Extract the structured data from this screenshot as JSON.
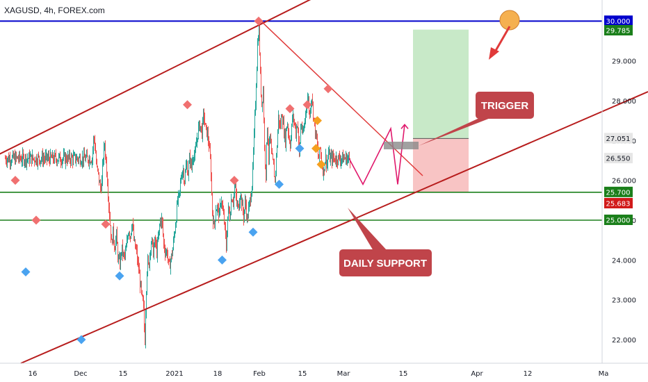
{
  "header": {
    "symbol_label": "XAGUSD, 4h, FOREX.com"
  },
  "colors": {
    "channel": "#b71c1c",
    "resistance": "#0000cc",
    "support_green": "#1b7f1b",
    "candle_up": "#26a69a",
    "candle_down": "#ef5350",
    "marker_red": "#f07070",
    "marker_blue": "#4aa3f0",
    "marker_orange": "#f5a020",
    "path_magenta": "#e0186c",
    "target_zone": "#c8e9c8",
    "stop_zone": "#f8c4c4",
    "callout_bg": "#c0444a",
    "sun_marker": "#f5b050"
  },
  "annotations": {
    "trigger_label": "TRIGGER",
    "daily_support_label": "DAILY SUPPORT"
  },
  "chart_data": {
    "type": "candlestick",
    "title": "XAGUSD, 4h, FOREX.com",
    "y_axis": {
      "ticks": [
        "22.000",
        "23.000",
        "24.000",
        "25.000",
        "26.000",
        "27.000",
        "28.000",
        "29.000"
      ],
      "tick_values": [
        22,
        23,
        24,
        25,
        26,
        27,
        28,
        29
      ]
    },
    "x_axis": {
      "tick_labels": [
        "16",
        "Dec",
        "15",
        "2021",
        "18",
        "Feb",
        "15",
        "Mar",
        "15",
        "Apr",
        "12",
        "Ma"
      ]
    },
    "price_tags": [
      {
        "value": 30.0,
        "label": "30.000",
        "color": "#0000cc"
      },
      {
        "value": 29.785,
        "label": "29.785",
        "color": "#1b7f1b"
      },
      {
        "value": 27.051,
        "label": "27.051",
        "color": "#e6e6e6"
      },
      {
        "value": 26.55,
        "label": "26.550",
        "color": "#e6e6e6"
      },
      {
        "value": 25.7,
        "label": "25.700",
        "color": "#1b7f1b"
      },
      {
        "value": 25.683,
        "label": "25.683",
        "color": "#d11a1a"
      },
      {
        "value": 25.0,
        "label": "25.000",
        "color": "#1b7f1b"
      }
    ],
    "horizontal_levels": [
      {
        "value": 30.0,
        "role": "resistance"
      },
      {
        "value": 25.7,
        "role": "support"
      },
      {
        "value": 25.0,
        "role": "support"
      }
    ],
    "position": {
      "entry": 27.051,
      "target": 29.785,
      "stop": 25.7
    },
    "close_path": [
      [
        25.0,
        26.55
      ],
      [
        25.4,
        27.02
      ],
      [
        25.6,
        27.05
      ],
      [
        26.0,
        26.7
      ],
      [
        26.3,
        26.3
      ],
      [
        26.7,
        26.2
      ],
      [
        27.0,
        26.0
      ],
      [
        27.4,
        25.8
      ],
      [
        27.8,
        25.95
      ],
      [
        28.2,
        26.6
      ],
      [
        28.6,
        26.9
      ],
      [
        29.0,
        26.5
      ],
      [
        29.4,
        26.0
      ],
      [
        29.8,
        25.4
      ],
      [
        30.2,
        24.9
      ],
      [
        30.6,
        24.4
      ],
      [
        31.0,
        24.7
      ],
      [
        31.5,
        24.3
      ],
      [
        32.0,
        24.6
      ],
      [
        32.5,
        24.0
      ],
      [
        33.0,
        23.9
      ],
      [
        33.5,
        24.3
      ],
      [
        34.0,
        24.1
      ],
      [
        34.5,
        24.1
      ],
      [
        35.0,
        24.4
      ],
      [
        35.5,
        24.8
      ],
      [
        36.0,
        24.6
      ],
      [
        36.5,
        25.0
      ],
      [
        37.0,
        24.5
      ],
      [
        37.4,
        24.3
      ],
      [
        37.8,
        24.2
      ],
      [
        38.1,
        23.9
      ],
      [
        38.4,
        23.8
      ],
      [
        38.7,
        23.5
      ],
      [
        39.0,
        23.3
      ],
      [
        39.4,
        23.0
      ],
      [
        39.8,
        22.8
      ],
      [
        40.0,
        22.3
      ],
      [
        40.2,
        22.0
      ],
      [
        40.5,
        23.1
      ],
      [
        40.9,
        24.0
      ],
      [
        41.3,
        23.8
      ],
      [
        41.7,
        24.3
      ],
      [
        42.1,
        24.5
      ],
      [
        42.6,
        24.2
      ],
      [
        43.1,
        24.5
      ],
      [
        43.6,
        24.2
      ],
      [
        44.1,
        24.6
      ],
      [
        44.6,
        25.0
      ],
      [
        45.1,
        25.0
      ],
      [
        45.6,
        24.4
      ],
      [
        46.1,
        24.2
      ],
      [
        46.6,
        24.2
      ],
      [
        47.1,
        23.8
      ],
      [
        47.6,
        24.0
      ],
      [
        48.1,
        24.2
      ],
      [
        48.6,
        24.6
      ],
      [
        49.1,
        25.0
      ],
      [
        49.6,
        25.5
      ],
      [
        50.1,
        25.6
      ],
      [
        50.6,
        26.1
      ],
      [
        51.1,
        26.3
      ],
      [
        51.6,
        26.0
      ],
      [
        52.1,
        26.4
      ],
      [
        52.6,
        26.2
      ],
      [
        53.1,
        26.6
      ],
      [
        53.6,
        26.3
      ],
      [
        54.1,
        26.7
      ],
      [
        54.6,
        26.6
      ],
      [
        55.1,
        27.0
      ],
      [
        55.6,
        27.3
      ],
      [
        56.1,
        27.4
      ],
      [
        56.6,
        27.2
      ],
      [
        57.1,
        27.7
      ],
      [
        57.6,
        27.3
      ],
      [
        58.1,
        27.2
      ],
      [
        58.6,
        26.9
      ],
      [
        59.1,
        26.4
      ],
      [
        59.6,
        25.2
      ],
      [
        60.1,
        24.8
      ],
      [
        60.6,
        25.3
      ],
      [
        61.1,
        25.3
      ],
      [
        61.6,
        25.1
      ],
      [
        62.1,
        25.6
      ],
      [
        62.6,
        25.2
      ],
      [
        63.1,
        24.9
      ],
      [
        63.6,
        24.3
      ],
      [
        64.1,
        25.3
      ],
      [
        64.6,
        25.1
      ],
      [
        65.1,
        25.6
      ],
      [
        65.6,
        25.5
      ],
      [
        66.1,
        25.9
      ],
      [
        66.6,
        25.4
      ],
      [
        67.1,
        25.3
      ],
      [
        67.6,
        25.7
      ],
      [
        68.1,
        25.4
      ],
      [
        68.6,
        25.1
      ],
      [
        69.1,
        25.5
      ],
      [
        69.6,
        25.0
      ],
      [
        70.1,
        25.3
      ],
      [
        70.6,
        25.6
      ],
      [
        71.1,
        26.0
      ],
      [
        71.6,
        27.1
      ],
      [
        72.1,
        28.2
      ],
      [
        72.6,
        29.4
      ],
      [
        73.0,
        29.9
      ],
      [
        73.4,
        28.6
      ],
      [
        73.8,
        27.9
      ],
      [
        74.2,
        28.3
      ],
      [
        74.6,
        26.8
      ],
      [
        75.0,
        26.2
      ],
      [
        75.4,
        27.4
      ],
      [
        75.8,
        26.6
      ],
      [
        76.2,
        27.1
      ],
      [
        76.6,
        26.6
      ],
      [
        77.1,
        26.4
      ],
      [
        77.6,
        26.0
      ],
      [
        78.1,
        26.7
      ],
      [
        78.6,
        27.6
      ],
      [
        79.1,
        27.3
      ],
      [
        79.6,
        27.7
      ],
      [
        80.1,
        27.3
      ],
      [
        80.6,
        27.0
      ],
      [
        81.1,
        27.5
      ],
      [
        81.6,
        27.1
      ],
      [
        82.1,
        26.9
      ],
      [
        82.6,
        27.6
      ],
      [
        83.1,
        27.5
      ],
      [
        83.6,
        27.2
      ],
      [
        84.1,
        27.5
      ],
      [
        84.6,
        26.6
      ],
      [
        85.1,
        27.5
      ],
      [
        85.6,
        27.1
      ],
      [
        86.1,
        27.4
      ],
      [
        86.6,
        27.9
      ],
      [
        87.1,
        28.1
      ],
      [
        87.6,
        27.6
      ],
      [
        88.1,
        28.2
      ],
      [
        88.6,
        27.7
      ],
      [
        89.1,
        27.3
      ],
      [
        89.6,
        27.0
      ],
      [
        90.1,
        26.5
      ],
      [
        90.6,
        26.8
      ],
      [
        91.1,
        26.4
      ],
      [
        91.6,
        26.2
      ],
      [
        92.1,
        26.6
      ],
      [
        92.6,
        26.4
      ],
      [
        93.0,
        26.7
      ],
      [
        93.3,
        26.55
      ]
    ],
    "pivot_markers": {
      "red": [
        [
          3,
          26.0
        ],
        [
          9,
          25.0
        ],
        [
          29,
          24.9
        ],
        [
          52.5,
          27.9
        ],
        [
          66,
          26.0
        ],
        [
          73,
          30.0
        ],
        [
          82,
          27.8
        ],
        [
          87,
          27.9
        ],
        [
          93,
          28.3
        ]
      ],
      "blue": [
        [
          6,
          23.7
        ],
        [
          22,
          22.0
        ],
        [
          33,
          23.6
        ],
        [
          62.5,
          24.0
        ],
        [
          71.4,
          24.7
        ],
        [
          78.9,
          25.9
        ],
        [
          84.8,
          26.8
        ]
      ],
      "orange": [
        [
          89.9,
          27.5
        ],
        [
          89.5,
          26.8
        ],
        [
          91,
          26.4
        ]
      ]
    },
    "projected_path": [
      [
        99,
        26.55
      ],
      [
        103,
        25.9
      ],
      [
        111,
        27.3
      ],
      [
        113,
        25.9
      ],
      [
        115,
        27.4
      ]
    ]
  }
}
